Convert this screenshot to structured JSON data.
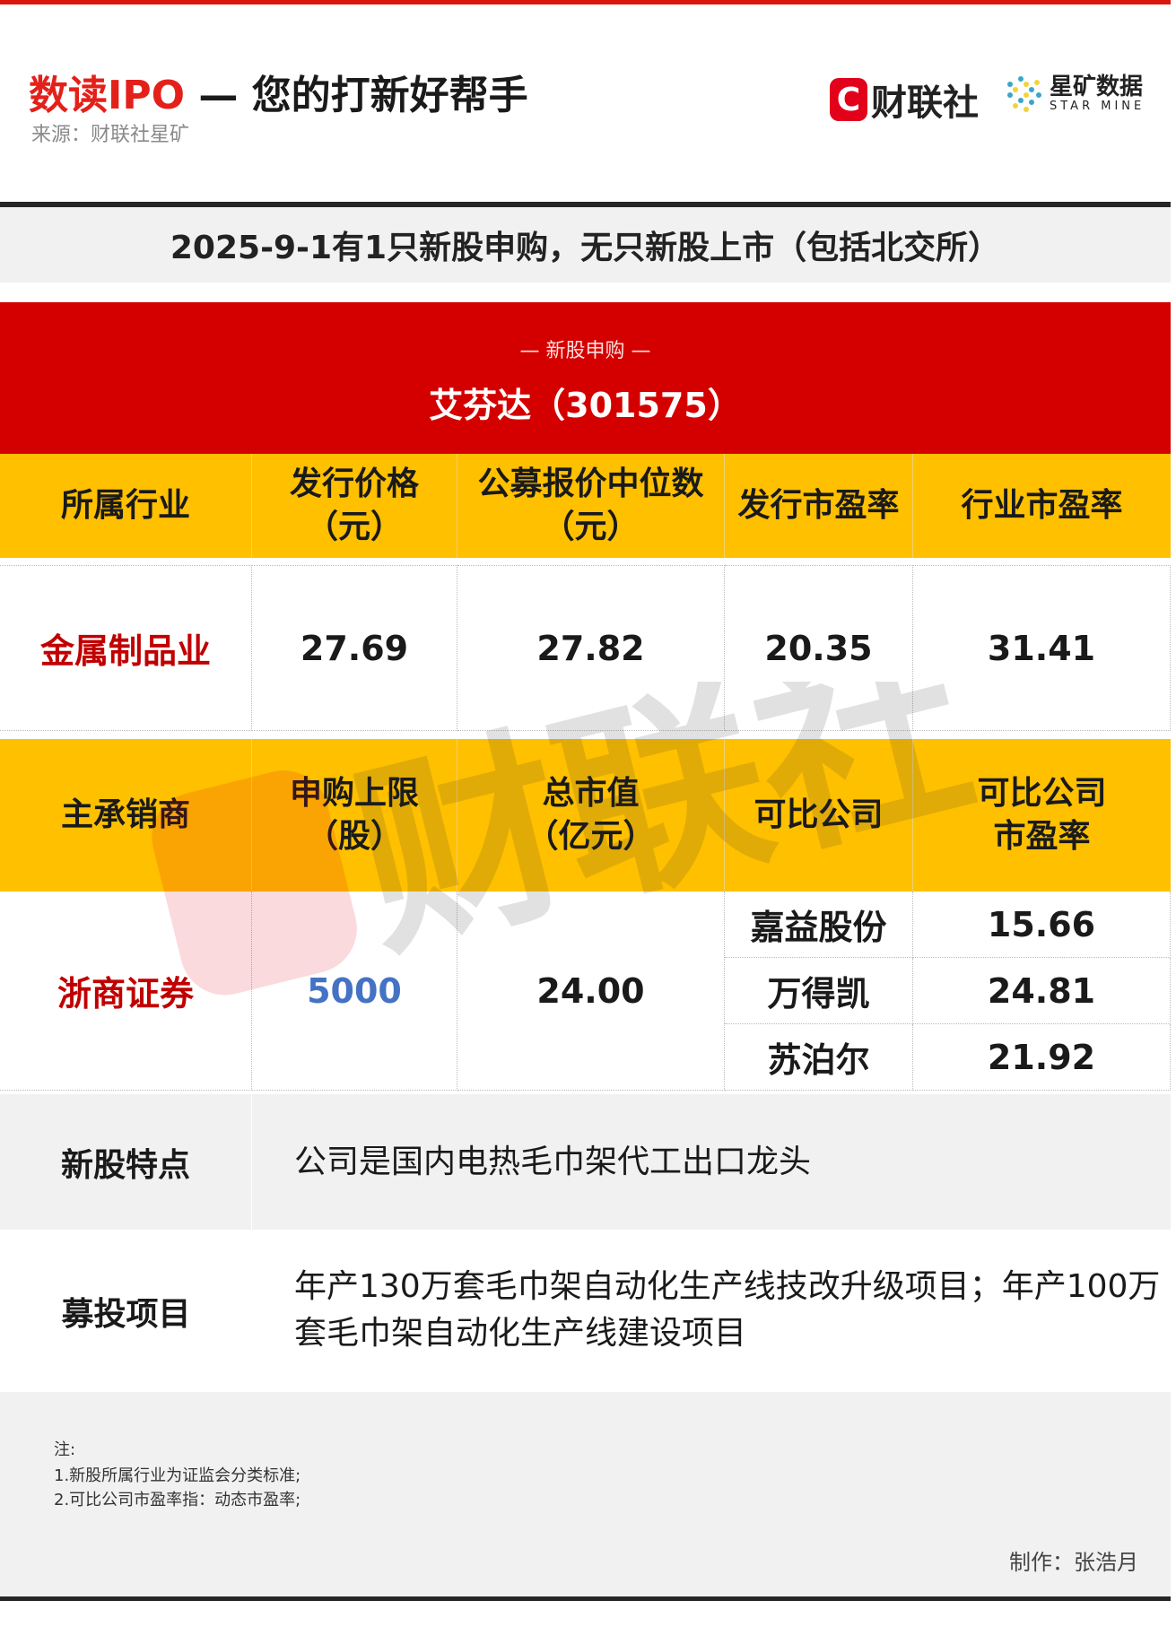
{
  "header": {
    "title_red": "数读IPO",
    "title_rest": " — 您的打新好帮手",
    "source": "来源：财联社星矿",
    "logo_cls": "财联社",
    "logo_cls_mark": "C",
    "logo_starmine_cn": "星矿数据",
    "logo_starmine_en": "STAR MINE"
  },
  "banner": "2025-9-1有1只新股申购，无只新股上市（包括北交所）",
  "section": {
    "label": "— 新股申购 —",
    "company": "艾芬达（301575）"
  },
  "table1": {
    "headers": [
      "所属行业",
      "发行价格\n（元）",
      "公募报价中位数\n（元）",
      "发行市盈率",
      "行业市盈率"
    ],
    "values": [
      "金属制品业",
      "27.69",
      "27.82",
      "20.35",
      "31.41"
    ]
  },
  "table2": {
    "headers": [
      "主承销商",
      "申购上限\n（股）",
      "总市值\n（亿元）",
      "可比公司",
      "可比公司\n市盈率"
    ],
    "underwriter": "浙商证券",
    "subscription_limit": "5000",
    "market_cap": "24.00",
    "comparables": [
      {
        "name": "嘉益股份",
        "pe": "15.66"
      },
      {
        "name": "万得凯",
        "pe": "24.81"
      },
      {
        "name": "苏泊尔",
        "pe": "21.92"
      }
    ]
  },
  "features": {
    "label": "新股特点",
    "text": "公司是国内电热毛巾架代工出口龙头"
  },
  "projects": {
    "label": "募投项目",
    "text": "年产130万套毛巾架自动化生产线技改升级项目；年产100万套毛巾架自动化生产线建设项目"
  },
  "notes": {
    "title": "注:",
    "items": [
      "1.新股所属行业为证监会分类标准;",
      "2.可比公司市盈率指：动态市盈率;"
    ],
    "maker": "制作：张浩月"
  },
  "watermark": "财联社",
  "colors": {
    "red": "#d40000",
    "yellow": "#ffc000",
    "blue": "#4472c4"
  }
}
